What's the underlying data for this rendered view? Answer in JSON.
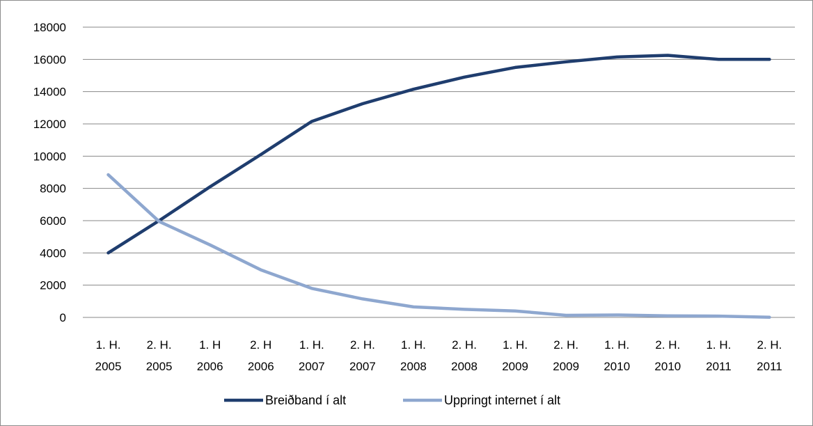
{
  "chart_data": {
    "type": "line",
    "title": "",
    "xlabel": "",
    "ylabel": "",
    "ylim": [
      0,
      18000
    ],
    "yticks": [
      0,
      2000,
      4000,
      6000,
      8000,
      10000,
      12000,
      14000,
      16000,
      18000
    ],
    "grid": "horizontal",
    "legend_position": "bottom",
    "categories": [
      [
        "1. H.",
        "2005"
      ],
      [
        "2. H.",
        "2005"
      ],
      [
        "1. H",
        "2006"
      ],
      [
        "2. H",
        "2006"
      ],
      [
        "1. H.",
        "2007"
      ],
      [
        "2. H.",
        "2007"
      ],
      [
        "1. H.",
        "2008"
      ],
      [
        "2. H.",
        "2008"
      ],
      [
        "1. H.",
        "2009"
      ],
      [
        "2. H.",
        "2009"
      ],
      [
        "1. H.",
        "2010"
      ],
      [
        "2. H.",
        "2010"
      ],
      [
        "1. H.",
        "2011"
      ],
      [
        "2. H.",
        "2011"
      ]
    ],
    "series": [
      {
        "name": "Breiðband í alt",
        "color": "#1f3d6e",
        "values": [
          4000,
          6000,
          8100,
          10100,
          12150,
          13250,
          14150,
          14900,
          15500,
          15850,
          16150,
          16250,
          16000,
          16000
        ]
      },
      {
        "name": "Uppringt internet í alt",
        "color": "#8ea7cf",
        "values": [
          8850,
          5950,
          4500,
          2950,
          1800,
          1150,
          650,
          500,
          400,
          130,
          150,
          100,
          80,
          10
        ]
      }
    ]
  }
}
